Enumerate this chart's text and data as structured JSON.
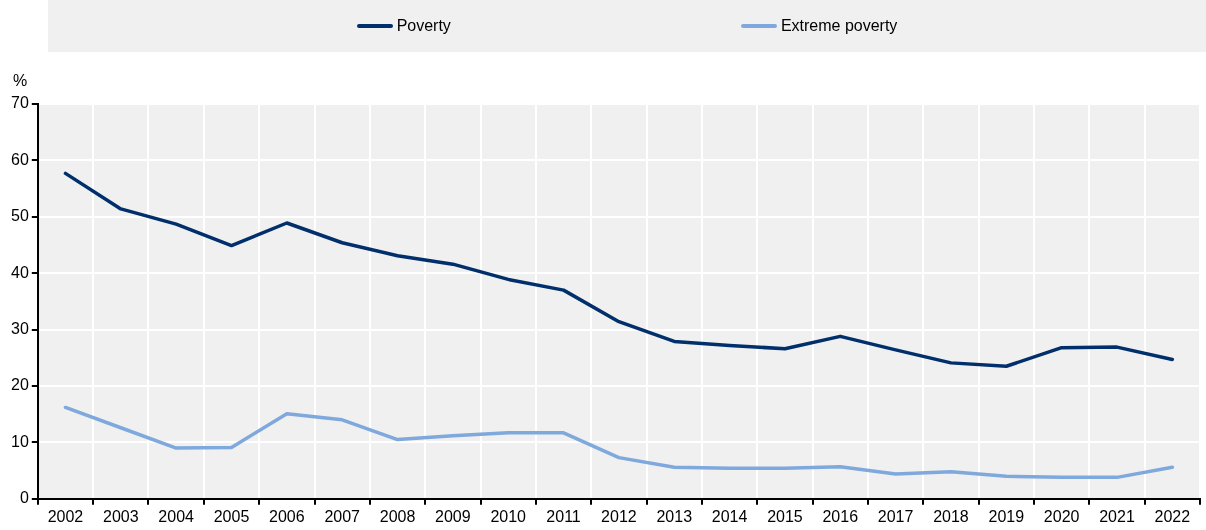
{
  "chart_data": {
    "type": "line",
    "ylabel": "%",
    "categories": [
      "2002",
      "2003",
      "2004",
      "2005",
      "2006",
      "2007",
      "2008",
      "2009",
      "2010",
      "2011",
      "2012",
      "2013",
      "2014",
      "2015",
      "2016",
      "2017",
      "2018",
      "2019",
      "2020",
      "2021",
      "2022"
    ],
    "series": [
      {
        "name": "Poverty",
        "color": "#002f6c",
        "values": [
          57.7,
          51.4,
          48.7,
          44.9,
          48.9,
          45.4,
          43.1,
          41.6,
          38.9,
          37.0,
          31.4,
          27.9,
          27.2,
          26.6,
          28.8,
          26.4,
          24.1,
          23.5,
          26.8,
          26.9,
          24.7
        ]
      },
      {
        "name": "Extreme poverty",
        "color": "#7fa8dc",
        "values": [
          16.2,
          12.6,
          9.0,
          9.1,
          15.1,
          14.0,
          10.5,
          11.2,
          11.7,
          11.7,
          7.3,
          5.6,
          5.4,
          5.4,
          5.7,
          4.4,
          4.8,
          4.0,
          3.8,
          3.8,
          5.6
        ]
      }
    ],
    "ylim": [
      0,
      70
    ],
    "yticks": [
      0,
      10,
      20,
      30,
      40,
      50,
      60,
      70
    ],
    "grid": true,
    "legend": "top",
    "marker": "none",
    "line_style": "solid"
  }
}
